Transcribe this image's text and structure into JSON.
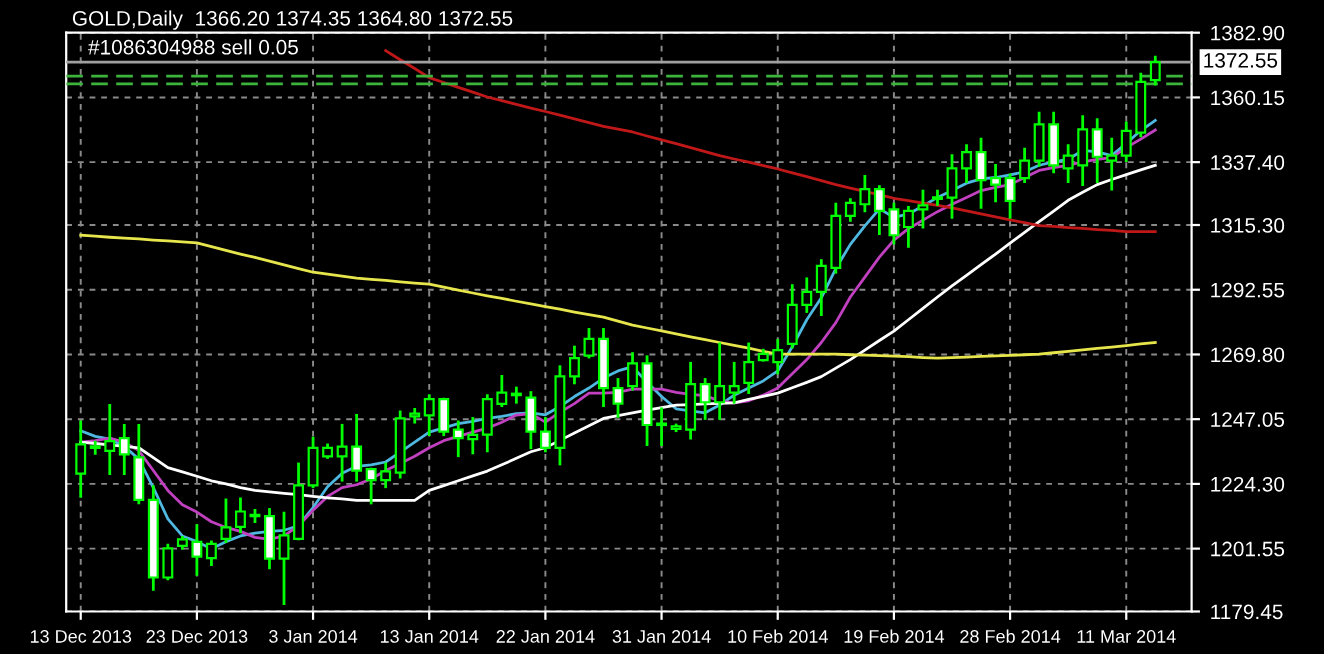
{
  "chart_data": {
    "type": "candlestick",
    "title": "GOLD,Daily  1366.20 1374.35 1364.80 1372.55",
    "categories": [
      "13 Dec 2013",
      null,
      null,
      null,
      null,
      null,
      null,
      null,
      "23 Dec 2013",
      null,
      null,
      null,
      null,
      null,
      null,
      null,
      "3 Jan 2014",
      null,
      null,
      null,
      null,
      null,
      null,
      null,
      "13 Jan 2014",
      null,
      null,
      null,
      null,
      null,
      null,
      null,
      "22 Jan 2014",
      null,
      null,
      null,
      null,
      null,
      null,
      null,
      "31 Jan 2014",
      null,
      null,
      null,
      null,
      null,
      null,
      null,
      "10 Feb 2014",
      null,
      null,
      null,
      null,
      null,
      null,
      null,
      "19 Feb 2014",
      null,
      null,
      null,
      null,
      null,
      null,
      null,
      "28 Feb 2014",
      null,
      null,
      null,
      null,
      null,
      null,
      null,
      "11 Mar 2014",
      null,
      null
    ],
    "ohlc": [
      [
        1227.9,
        1246.1,
        1219.9,
        1238.2
      ],
      [
        1237,
        1239,
        1235,
        1237.5
      ],
      [
        1235.9,
        1251.9,
        1227.9,
        1239.3
      ],
      [
        1240.4,
        1244.9,
        1227.9,
        1234.7
      ],
      [
        1233.6,
        1244.9,
        1217.6,
        1218.7
      ],
      [
        1218.7,
        1223.3,
        1187.2,
        1191.4
      ],
      [
        1191.4,
        1202.8,
        1190.9,
        1201.6
      ],
      [
        1202.5,
        1205.5,
        1201.6,
        1204.8
      ],
      [
        1203.9,
        1209.6,
        1192.5,
        1198.7
      ],
      [
        1198.2,
        1203.9,
        1195.9,
        1203.2
      ],
      [
        1205,
        1218.7,
        1204,
        1209
      ],
      [
        1209.2,
        1219,
        1207.4,
        1214.6
      ],
      [
        1213,
        1215,
        1211,
        1213.4
      ],
      [
        1213,
        1215.3,
        1194.8,
        1198
      ],
      [
        1198,
        1214,
        1182.2,
        1206.2
      ],
      [
        1205,
        1231.3,
        1205,
        1223.8
      ],
      [
        1223.8,
        1240.4,
        1223.3,
        1237
      ],
      [
        1234,
        1238,
        1233.6,
        1237
      ],
      [
        1234,
        1244.9,
        1225.6,
        1237.4
      ],
      [
        1237.4,
        1248.4,
        1225.6,
        1229
      ],
      [
        1229.5,
        1229.5,
        1217.6,
        1225.6
      ],
      [
        1225.6,
        1231.3,
        1223.3,
        1228.7
      ],
      [
        1228.3,
        1249.6,
        1226.7,
        1247.3
      ],
      [
        1248,
        1250.5,
        1246,
        1249
      ],
      [
        1248.4,
        1255.3,
        1241.6,
        1254.1
      ],
      [
        1254.1,
        1254.1,
        1241.6,
        1242.7
      ],
      [
        1243.4,
        1246.1,
        1234.2,
        1240.4
      ],
      [
        1240,
        1247.3,
        1235.2,
        1241.5
      ],
      [
        1241.6,
        1255.3,
        1235.9,
        1254.1
      ],
      [
        1252.4,
        1262.1,
        1251.8,
        1256.4
      ],
      [
        1255.5,
        1258,
        1253,
        1256
      ],
      [
        1254.6,
        1256.4,
        1237,
        1242.7
      ],
      [
        1242.7,
        1247.3,
        1235.9,
        1237
      ],
      [
        1237,
        1265.5,
        1231.3,
        1262.1
      ],
      [
        1262.1,
        1272.4,
        1259.8,
        1268.5
      ],
      [
        1269.4,
        1278.6,
        1268.9,
        1275.3
      ],
      [
        1275.3,
        1278.6,
        1251.8,
        1258
      ],
      [
        1258,
        1261,
        1248,
        1252.5
      ],
      [
        1258.7,
        1270.1,
        1257.6,
        1266.7
      ],
      [
        1266.7,
        1269,
        1238.1,
        1245
      ],
      [
        1245,
        1250.7,
        1238.1,
        1245.5
      ],
      [
        1243.6,
        1245,
        1243,
        1244.5
      ],
      [
        1243.4,
        1266.7,
        1240.4,
        1259.4
      ],
      [
        1259.4,
        1261,
        1247.3,
        1253
      ],
      [
        1253,
        1273.5,
        1247.3,
        1258.7
      ],
      [
        1256.4,
        1266.7,
        1253,
        1258.7
      ],
      [
        1259.8,
        1273.5,
        1256.4,
        1267.1
      ],
      [
        1267.8,
        1271.3,
        1267.8,
        1270
      ],
      [
        1267.1,
        1274.7,
        1263.3,
        1271.3
      ],
      [
        1273.5,
        1294,
        1272.4,
        1287.2
      ],
      [
        1287.2,
        1296.4,
        1284.9,
        1291.8
      ],
      [
        1291.8,
        1302.8,
        1283.8,
        1300.9
      ],
      [
        1300.2,
        1322.6,
        1298.7,
        1318.5
      ],
      [
        1318.5,
        1324.2,
        1316.9,
        1323.1
      ],
      [
        1322.6,
        1332.4,
        1320.3,
        1327.9
      ],
      [
        1327.9,
        1328.8,
        1312.3,
        1320.3
      ],
      [
        1320.8,
        1322.6,
        1308.9,
        1311.7
      ],
      [
        1314.6,
        1321.5,
        1307.8,
        1320.3
      ],
      [
        1320.8,
        1327.2,
        1314.6,
        1322.2
      ],
      [
        1324.5,
        1327.2,
        1322.6,
        1325
      ],
      [
        1324.9,
        1339.7,
        1318,
        1335.2
      ],
      [
        1335.2,
        1343.2,
        1330.6,
        1340.9
      ],
      [
        1340.9,
        1345.5,
        1321.5,
        1331.1
      ],
      [
        1331.8,
        1336.3,
        1323.8,
        1329.5
      ],
      [
        1331.8,
        1332.9,
        1318,
        1323.8
      ],
      [
        1331.8,
        1342,
        1330.6,
        1337.9
      ],
      [
        1337.9,
        1354.6,
        1336.3,
        1350.7
      ],
      [
        1350.7,
        1354.6,
        1334,
        1336.3
      ],
      [
        1335.2,
        1343.2,
        1330.6,
        1339.7
      ],
      [
        1336.3,
        1353.4,
        1329.5,
        1348.9
      ],
      [
        1348.9,
        1352.3,
        1330.6,
        1339.3
      ],
      [
        1337.9,
        1345.5,
        1327.9,
        1339.7
      ],
      [
        1339.7,
        1351.2,
        1337.9,
        1348.4
      ],
      [
        1347.8,
        1368.3,
        1346.6,
        1365.6
      ],
      [
        1366.2,
        1374.35,
        1364.8,
        1372.55
      ]
    ],
    "series": [
      {
        "type": "line",
        "color": "#4fb8e0",
        "values": [
          1243,
          1241,
          1240,
          1237.5,
          1233,
          1223,
          1212,
          1206,
          1204,
          1201.5,
          1204,
          1206,
          1207,
          1207.6,
          1208,
          1209.6,
          1216,
          1223.3,
          1228,
          1230.5,
          1231,
          1232,
          1235.5,
          1239,
          1242.5,
          1244,
          1245.5,
          1246.3,
          1247.3,
          1248,
          1249,
          1249.3,
          1248.6,
          1251.5,
          1255,
          1258,
          1261.5,
          1264,
          1265.5,
          1260,
          1255,
          1250.7,
          1250,
          1249.3,
          1252,
          1255.5,
          1258,
          1260.5,
          1264,
          1272.5,
          1282,
          1289.7,
          1300,
          1308.5,
          1315,
          1321,
          1318,
          1319.2,
          1322,
          1325,
          1327.4,
          1330,
          1331.5,
          1332,
          1332.9,
          1334,
          1336.3,
          1337.5,
          1338.4,
          1341.5,
          1341,
          1339.7,
          1344,
          1348.5,
          1352.1
        ]
      },
      {
        "type": "line",
        "color": "#c040c0",
        "values": [
          1239,
          1239.5,
          1240.4,
          1239,
          1236,
          1229,
          1222,
          1217,
          1214.4,
          1211,
          1209,
          1207.6,
          1205.5,
          1204.8,
          1206,
          1209.6,
          1215,
          1219.9,
          1223,
          1224,
          1226,
          1229,
          1231.5,
          1234,
          1237,
          1239.5,
          1241,
          1242.5,
          1243.9,
          1246,
          1248.5,
          1249,
          1246,
          1249.5,
          1252.5,
          1256.2,
          1256.2,
          1256.5,
          1257.6,
          1257.6,
          1257.6,
          1256.5,
          1255.8,
          1255.3,
          1253.5,
          1252.8,
          1253.5,
          1255.5,
          1258,
          1263,
          1268,
          1274,
          1281,
          1290,
          1297,
          1304,
          1310,
          1314,
          1317,
          1320,
          1322.6,
          1325,
          1327.4,
          1328.5,
          1329.5,
          1332,
          1334.5,
          1335.5,
          1336.3,
          1337.5,
          1338.4,
          1339,
          1342.5,
          1345.5,
          1348.7
        ]
      },
      {
        "type": "line",
        "color": "#ffffff",
        "values": [
          1239,
          1238.5,
          1238,
          1237.5,
          1237,
          1233.5,
          1230,
          1228.5,
          1227,
          1225.4,
          1224.3,
          1223,
          1222,
          1221.5,
          1221,
          1220.5,
          1219.9,
          1219.4,
          1219,
          1218.5,
          1218.5,
          1218.5,
          1218.5,
          1218.5,
          1222,
          1223.7,
          1225.4,
          1227.1,
          1228.8,
          1231,
          1233.3,
          1235.6,
          1237,
          1239.6,
          1242.2,
          1244.7,
          1247.3,
          1248.3,
          1249.3,
          1250.2,
          1251.1,
          1252,
          1252.2,
          1252.4,
          1252.6,
          1252.8,
          1254,
          1255.1,
          1256.2,
          1258.1,
          1260,
          1262,
          1265,
          1268,
          1271.3,
          1274.7,
          1278,
          1282,
          1286,
          1290,
          1293.9,
          1297.6,
          1301.4,
          1305.1,
          1308.9,
          1312.7,
          1316.5,
          1320.2,
          1324,
          1326.8,
          1329.5,
          1331.3,
          1333,
          1334.7,
          1336.3
        ]
      },
      {
        "type": "line",
        "color": "#e6e64c",
        "values": [
          1311.7,
          1311.4,
          1311,
          1310.7,
          1310.4,
          1310,
          1309.7,
          1309.4,
          1309,
          1307.7,
          1306.4,
          1305.1,
          1303.9,
          1302.6,
          1301.3,
          1300,
          1298.7,
          1298,
          1297.3,
          1296.6,
          1296.2,
          1295.8,
          1295.3,
          1294.9,
          1294.5,
          1293.5,
          1292.4,
          1291.4,
          1290.4,
          1289.5,
          1288.5,
          1287.6,
          1286.6,
          1285.7,
          1284.7,
          1283.8,
          1282.9,
          1281.5,
          1280.1,
          1279.1,
          1278.1,
          1277,
          1276,
          1275,
          1274,
          1273,
          1272,
          1270.9,
          1269.9,
          1269.9,
          1269.9,
          1269.9,
          1269.9,
          1269.7,
          1269.6,
          1269.4,
          1269.2,
          1269,
          1268.7,
          1268.5,
          1268.7,
          1268.9,
          1269.1,
          1269.3,
          1269.5,
          1269.7,
          1269.9,
          1270.4,
          1270.9,
          1271.4,
          1271.9,
          1272.4,
          1272.9,
          1273.5,
          1274
        ]
      },
      {
        "type": "line",
        "color": "#c01818",
        "values": [
          null,
          null,
          null,
          null,
          null,
          null,
          null,
          null,
          null,
          null,
          null,
          null,
          null,
          null,
          null,
          null,
          null,
          null,
          null,
          null,
          null,
          1376.6,
          1373.4,
          1370.3,
          1367.1,
          1365.4,
          1363.7,
          1362,
          1360.3,
          1359,
          1357.7,
          1356.4,
          1355.2,
          1353.9,
          1352.6,
          1351.3,
          1350,
          1349,
          1348,
          1346.6,
          1345.2,
          1343.9,
          1342.5,
          1341.1,
          1339.7,
          1338.5,
          1337.4,
          1336.2,
          1335,
          1333.6,
          1332.3,
          1330.9,
          1329.5,
          1328.3,
          1327.1,
          1325.9,
          1324.7,
          1323.9,
          1323,
          1322.2,
          1321.3,
          1320.3,
          1319.2,
          1318.2,
          1317.1,
          1316.1,
          1315.1,
          1314.8,
          1314.4,
          1314.1,
          1313.7,
          1313.4,
          1313,
          1313,
          1313
        ]
      }
    ],
    "ref_lines": [
      {
        "axis": "y",
        "value": 1372.55,
        "label": "1372.55",
        "color": "#a0a0a0",
        "line_style": "solid"
      },
      {
        "axis": "y",
        "value": 1367.6,
        "label": "#1086304988 sell 0.05",
        "color": "#3cb43c",
        "line_style": "dashed"
      },
      {
        "axis": "y",
        "value": 1364.9,
        "color": "#3cb43c",
        "line_style": "dashed"
      }
    ],
    "ylim": [
      1179.45,
      1382.9
    ],
    "yticks": [
      {
        "value": 1179.45,
        "label": "1179.45"
      },
      {
        "value": 1201.55,
        "label": "1201.55"
      },
      {
        "value": 1224.3,
        "label": "1224.30"
      },
      {
        "value": 1247.05,
        "label": "1247.05"
      },
      {
        "value": 1269.8,
        "label": "1269.80"
      },
      {
        "value": 1292.55,
        "label": "1292.55"
      },
      {
        "value": 1315.3,
        "label": "1315.30"
      },
      {
        "value": 1337.4,
        "label": "1337.40"
      },
      {
        "value": 1360.15,
        "label": "1360.15"
      },
      {
        "value": 1382.9,
        "label": "1382.90"
      }
    ],
    "grid": true
  }
}
